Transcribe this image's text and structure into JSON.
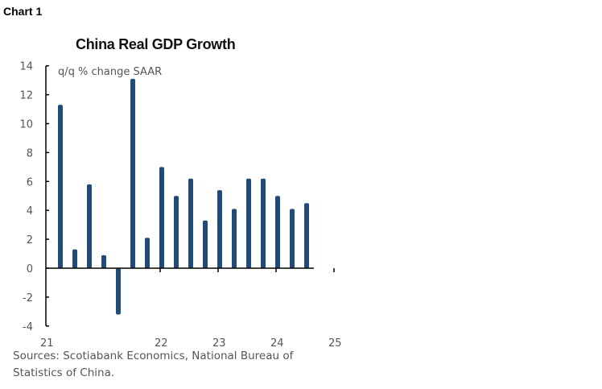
{
  "chart_label": "Chart 1",
  "chart_data": {
    "type": "bar",
    "title": "China Real GDP Growth",
    "ylabel": "q/q % change SAAR",
    "xlabel": "",
    "ylim": [
      -4,
      14
    ],
    "yticks": [
      -4,
      -2,
      0,
      2,
      4,
      6,
      8,
      10,
      12,
      14
    ],
    "xtick_labels": [
      "21",
      "22",
      "23",
      "24",
      "25"
    ],
    "categories": [
      "2021Q2",
      "2021Q3",
      "2021Q4",
      "2022Q1",
      "2022Q2",
      "2022Q3",
      "2022Q4",
      "2023Q1",
      "2023Q2",
      "2023Q3",
      "2023Q4",
      "2024Q1",
      "2024Q2",
      "2024Q3",
      "2024Q4",
      "2025Q1",
      "2025Q2",
      "2025Q3"
    ],
    "values": [
      11.3,
      1.3,
      5.8,
      0.9,
      -3.2,
      13.1,
      2.1,
      7.0,
      5.0,
      6.2,
      3.3,
      5.4,
      4.1,
      6.2,
      6.2,
      5.0,
      4.1,
      4.5
    ],
    "bar_color": "#1f4a7c",
    "grid": false,
    "legend": "none"
  },
  "source": "Sources: Scotiabank Economics, National Bureau of Statistics of China."
}
